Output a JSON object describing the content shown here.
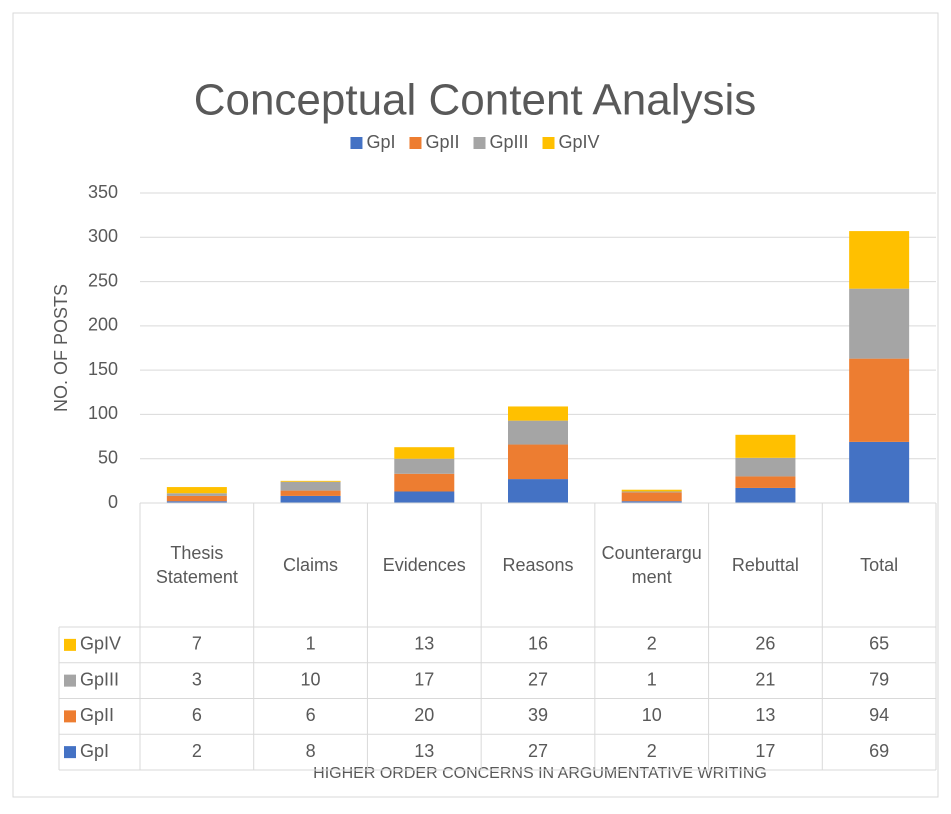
{
  "chart_data": {
    "type": "stacked_bar",
    "title": "Conceptual Content Analysis",
    "y_label": "NO. OF POSTS",
    "x_label": "HIGHER ORDER CONCERNS IN ARGUMENTATIVE WRITING",
    "categories": [
      "Thesis Statement",
      "Claims",
      "Evidences",
      "Reasons",
      "Counterargument",
      "Rebuttal",
      "Total"
    ],
    "series": [
      {
        "name": "GpI",
        "color": "#4472c4",
        "values": [
          2,
          8,
          13,
          27,
          2,
          17,
          69
        ]
      },
      {
        "name": "GpII",
        "color": "#ed7d31",
        "values": [
          6,
          6,
          20,
          39,
          10,
          13,
          94
        ]
      },
      {
        "name": "GpIII",
        "color": "#a5a5a5",
        "values": [
          3,
          10,
          17,
          27,
          1,
          21,
          79
        ]
      },
      {
        "name": "GpIV",
        "color": "#ffc000",
        "values": [
          7,
          1,
          13,
          16,
          2,
          26,
          65
        ]
      }
    ],
    "ylim": [
      0,
      350
    ],
    "yticks": [
      0,
      50,
      100,
      150,
      200,
      250,
      300,
      350
    ],
    "grid": true,
    "legend": "top",
    "data_table": true
  }
}
